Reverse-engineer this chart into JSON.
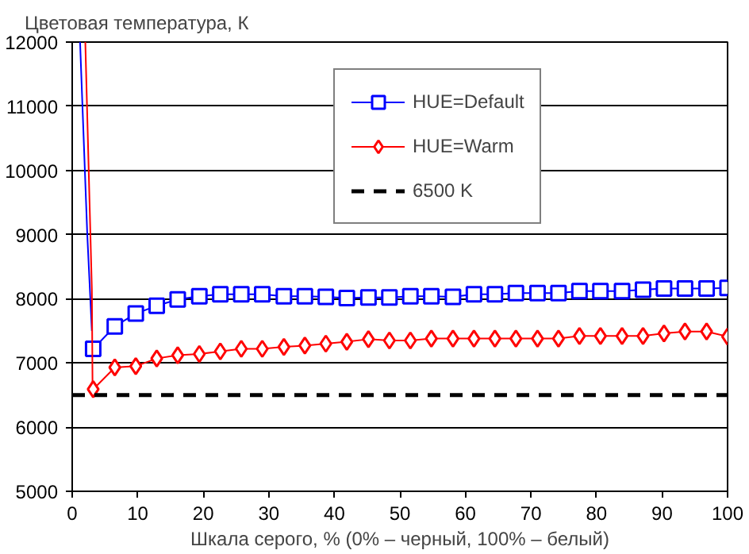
{
  "chart_data": {
    "type": "line",
    "xlabel": "Шкала серого, % (0% – черный, 100% – белый)",
    "ylabel": "Цветовая температура, К",
    "xlim": [
      0,
      100
    ],
    "xticks": [
      0,
      10,
      20,
      30,
      40,
      50,
      60,
      70,
      80,
      90,
      100
    ],
    "ylim": [
      5000,
      12000
    ],
    "yticks": [
      5000,
      6000,
      7000,
      8000,
      9000,
      10000,
      11000,
      12000
    ],
    "grid": "y",
    "legend": "top right",
    "line_style": "solid",
    "series": [
      {
        "name": "HUE=Default",
        "color": "#0000ff",
        "marker": "square",
        "x": [
          3.2,
          6.5,
          9.7,
          12.9,
          16.1,
          19.4,
          22.6,
          25.8,
          29.0,
          32.3,
          35.5,
          38.7,
          41.9,
          45.2,
          48.4,
          51.6,
          54.8,
          58.1,
          61.3,
          64.5,
          67.7,
          71.0,
          74.2,
          77.4,
          80.6,
          83.9,
          87.1,
          90.3,
          93.5,
          96.8,
          100
        ],
        "values": [
          7220,
          7570,
          7770,
          7890,
          7990,
          8040,
          8070,
          8070,
          8070,
          8040,
          8040,
          8030,
          8010,
          8020,
          8020,
          8040,
          8040,
          8030,
          8070,
          8070,
          8090,
          8090,
          8090,
          8120,
          8120,
          8120,
          8140,
          8160,
          8160,
          8160,
          8170
        ]
      },
      {
        "name": "HUE=Warm",
        "color": "#ff0000",
        "marker": "diamond",
        "x": [
          3.2,
          6.5,
          9.7,
          12.9,
          16.1,
          19.4,
          22.6,
          25.8,
          29.0,
          32.3,
          35.5,
          38.7,
          41.9,
          45.2,
          48.4,
          51.6,
          54.8,
          58.1,
          61.3,
          64.5,
          67.7,
          71.0,
          74.2,
          77.4,
          80.6,
          83.9,
          87.1,
          90.3,
          93.5,
          96.8,
          100
        ],
        "values": [
          6590,
          6930,
          6950,
          7070,
          7120,
          7140,
          7180,
          7220,
          7220,
          7250,
          7270,
          7300,
          7330,
          7370,
          7350,
          7350,
          7380,
          7380,
          7380,
          7380,
          7380,
          7380,
          7380,
          7420,
          7420,
          7420,
          7420,
          7460,
          7490,
          7490,
          7410
        ]
      },
      {
        "color": "#0000ff",
        "marker": "none",
        "x": [
          1.2,
          2.3,
          3.0
        ],
        "values": [
          12000,
          9000,
          7500
        ]
      },
      {
        "color": "#ff0000",
        "marker": "none",
        "x": [
          2.0,
          3.0,
          3.1
        ],
        "values": [
          12000,
          8150,
          6700
        ]
      }
    ],
    "ref_lines": [
      {
        "axis": "y",
        "value": 6500,
        "label": "6500 K",
        "color": "#000000",
        "line_style": "dashed"
      }
    ]
  }
}
